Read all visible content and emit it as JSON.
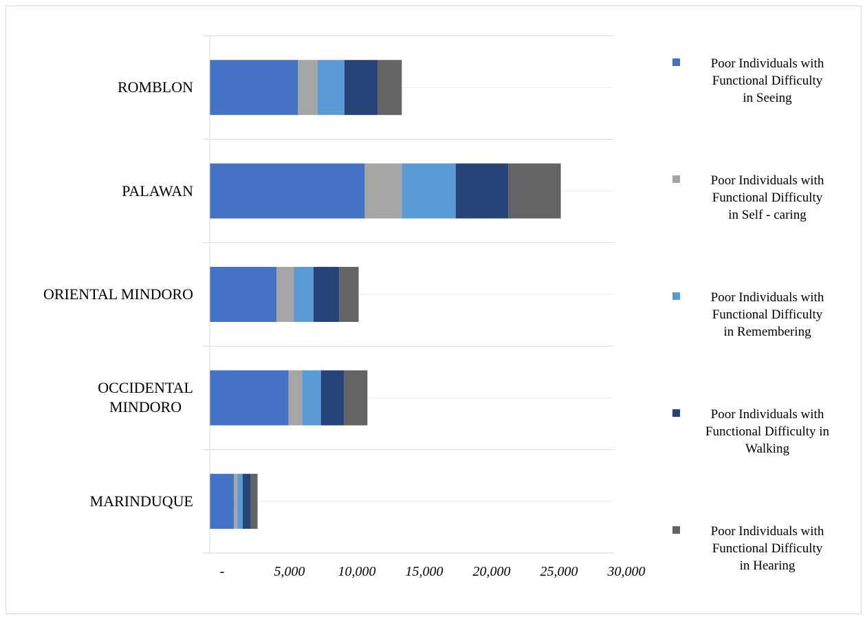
{
  "chart_data": {
    "type": "bar",
    "orientation": "horizontal",
    "stacked": true,
    "categories": [
      "ROMBLON",
      "PALAWAN",
      "ORIENTAL MINDORO",
      "OCCIDENTAL MINDORO",
      "MARINDUQUE"
    ],
    "category_lines": [
      [
        "ROMBLON"
      ],
      [
        "PALAWAN"
      ],
      [
        "ORIENTAL MINDORO"
      ],
      [
        "OCCIDENTAL",
        "MINDORO"
      ],
      [
        "MARINDUQUE"
      ]
    ],
    "series": [
      {
        "name": "Poor Individuals with Functional Difficulty in Seeing",
        "legend_lines": [
          "Poor Individuals with",
          "Functional Difficulty",
          "in Seeing"
        ],
        "color": "#4472c4",
        "values": [
          6550,
          11500,
          4950,
          5850,
          1800
        ]
      },
      {
        "name": "Poor Individuals with Functional Difficulty in Self - caring",
        "legend_lines": [
          "Poor Individuals with",
          "Functional Difficulty",
          "in Self - caring"
        ],
        "color": "#a5a5a5",
        "values": [
          1450,
          2750,
          1300,
          1000,
          250
        ]
      },
      {
        "name": "Poor Individuals with Functional Difficulty in Remembering",
        "legend_lines": [
          "Poor Individuals with",
          "Functional Difficulty",
          "in Remembering"
        ],
        "color": "#5b9bd5",
        "values": [
          2000,
          4000,
          1450,
          1400,
          400
        ]
      },
      {
        "name": "Poor Individuals with Functional Difficulty in Walking",
        "legend_lines": [
          "Poor Individuals with",
          "Functional Difficulty in",
          "Walking"
        ],
        "color": "#264478",
        "values": [
          2450,
          3900,
          1900,
          1700,
          600
        ]
      },
      {
        "name": "Poor Individuals with Functional Difficulty in Hearing",
        "legend_lines": [
          "Poor Individuals with",
          "Functional Difficulty",
          "in Hearing"
        ],
        "color": "#636363",
        "values": [
          1800,
          3900,
          1450,
          1750,
          500
        ]
      }
    ],
    "xlim": [
      0,
      30000
    ],
    "xticks": [
      "-",
      "5,000",
      "10,000",
      "15,000",
      "20,000",
      "25,000",
      "30,000"
    ],
    "xtick_values": [
      0,
      5000,
      10000,
      15000,
      20000,
      25000,
      30000
    ],
    "grid": true,
    "legend": "right"
  }
}
